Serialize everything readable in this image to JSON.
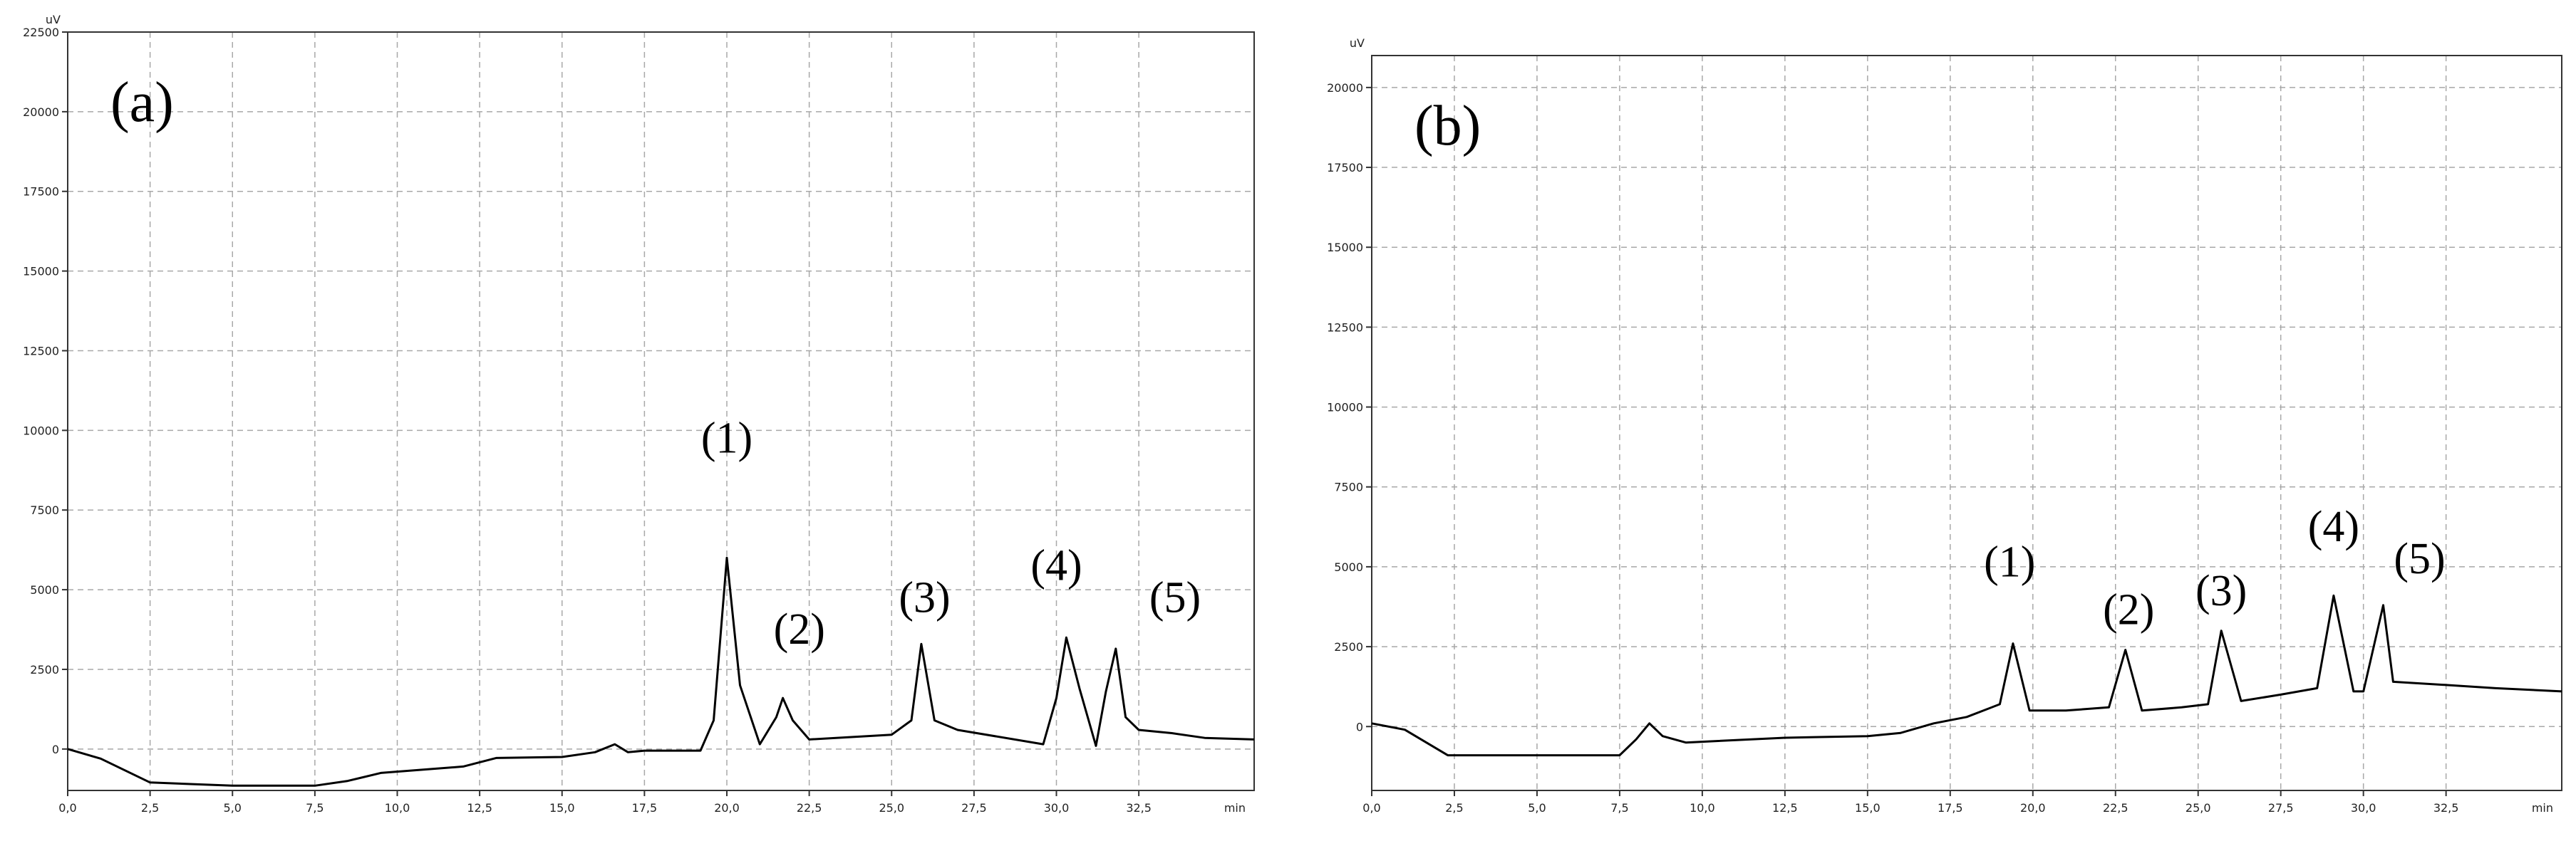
{
  "chart_data": [
    {
      "type": "line",
      "panel_label": "(a)",
      "y_unit": "uV",
      "x_unit": "min",
      "xlim": [
        0,
        36.0
      ],
      "ylim": [
        -1300,
        22500
      ],
      "x_ticks": [
        "0,0",
        "2,5",
        "5,0",
        "7,5",
        "10,0",
        "12,5",
        "15,0",
        "17,5",
        "20,0",
        "22,5",
        "25,0",
        "27,5",
        "30,0",
        "32,5"
      ],
      "x_tick_values": [
        0,
        2.5,
        5,
        7.5,
        10,
        12.5,
        15,
        17.5,
        20,
        22.5,
        25,
        27.5,
        30,
        32.5
      ],
      "y_ticks": [
        "0",
        "2500",
        "5000",
        "7500",
        "10000",
        "12500",
        "15000",
        "17500",
        "20000",
        "22500"
      ],
      "y_tick_values": [
        0,
        2500,
        5000,
        7500,
        10000,
        12500,
        15000,
        17500,
        20000,
        22500
      ],
      "grid": true,
      "series": [
        {
          "color": "#000000",
          "points": [
            [
              0,
              0
            ],
            [
              1,
              -300
            ],
            [
              2.5,
              -1050
            ],
            [
              5,
              -1150
            ],
            [
              7.5,
              -1150
            ],
            [
              8.5,
              -1000
            ],
            [
              9.5,
              -750
            ],
            [
              12,
              -550
            ],
            [
              13,
              -280
            ],
            [
              15,
              -250
            ],
            [
              16,
              -100
            ],
            [
              16.6,
              150
            ],
            [
              17,
              -100
            ],
            [
              17.5,
              -50
            ],
            [
              19.2,
              -50
            ],
            [
              19.6,
              900
            ],
            [
              20.0,
              6000
            ],
            [
              20.4,
              2000
            ],
            [
              21,
              150
            ],
            [
              21.5,
              1000
            ],
            [
              21.7,
              1600
            ],
            [
              22.0,
              900
            ],
            [
              22.5,
              300
            ],
            [
              25,
              450
            ],
            [
              25.6,
              900
            ],
            [
              25.9,
              3300
            ],
            [
              26.3,
              900
            ],
            [
              27,
              600
            ],
            [
              29.6,
              150
            ],
            [
              30.0,
              1600
            ],
            [
              30.3,
              3500
            ],
            [
              30.7,
              1900
            ],
            [
              31.2,
              100
            ],
            [
              31.5,
              1800
            ],
            [
              31.8,
              3150
            ],
            [
              32.1,
              1000
            ],
            [
              32.5,
              600
            ],
            [
              33.5,
              500
            ],
            [
              34.5,
              350
            ],
            [
              36,
              300
            ]
          ]
        }
      ],
      "annotations": [
        {
          "text": "(1)",
          "x": 20.0,
          "y": 9300
        },
        {
          "text": "(2)",
          "x": 22.2,
          "y": 3300
        },
        {
          "text": "(3)",
          "x": 26.0,
          "y": 4300
        },
        {
          "text": "(4)",
          "x": 30.0,
          "y": 5300
        },
        {
          "text": "(5)",
          "x": 33.6,
          "y": 4300
        }
      ]
    },
    {
      "type": "line",
      "panel_label": "(b)",
      "y_unit": "uV",
      "x_unit": "min",
      "xlim": [
        0,
        36.0
      ],
      "ylim": [
        -2000,
        21000
      ],
      "x_ticks": [
        "0,0",
        "2,5",
        "5,0",
        "7,5",
        "10,0",
        "12,5",
        "15,0",
        "17,5",
        "20,0",
        "22,5",
        "25,0",
        "27,5",
        "30,0",
        "32,5"
      ],
      "x_tick_values": [
        0,
        2.5,
        5,
        7.5,
        10,
        12.5,
        15,
        17.5,
        20,
        22.5,
        25,
        27.5,
        30,
        32.5
      ],
      "y_ticks": [
        "0",
        "2500",
        "5000",
        "7500",
        "10000",
        "12500",
        "15000",
        "17500",
        "20000"
      ],
      "y_tick_values": [
        0,
        2500,
        5000,
        7500,
        10000,
        12500,
        15000,
        17500,
        20000
      ],
      "grid": true,
      "series": [
        {
          "color": "#000000",
          "points": [
            [
              0,
              100
            ],
            [
              1,
              -100
            ],
            [
              2.3,
              -900
            ],
            [
              5,
              -900
            ],
            [
              7.5,
              -900
            ],
            [
              8,
              -400
            ],
            [
              8.4,
              100
            ],
            [
              8.8,
              -300
            ],
            [
              9.5,
              -500
            ],
            [
              12.5,
              -350
            ],
            [
              15,
              -300
            ],
            [
              16,
              -200
            ],
            [
              17,
              100
            ],
            [
              18,
              300
            ],
            [
              19,
              700
            ],
            [
              19.4,
              2600
            ],
            [
              19.9,
              500
            ],
            [
              21,
              500
            ],
            [
              22.3,
              600
            ],
            [
              22.8,
              2400
            ],
            [
              23.3,
              500
            ],
            [
              24.5,
              600
            ],
            [
              25.3,
              700
            ],
            [
              25.7,
              3000
            ],
            [
              26.3,
              800
            ],
            [
              27.5,
              1000
            ],
            [
              28.6,
              1200
            ],
            [
              29.1,
              4100
            ],
            [
              29.7,
              1100
            ],
            [
              30.0,
              1100
            ],
            [
              30.6,
              3800
            ],
            [
              30.9,
              1400
            ],
            [
              32.5,
              1300
            ],
            [
              34,
              1200
            ],
            [
              36,
              1100
            ]
          ]
        }
      ],
      "annotations": [
        {
          "text": "(1)",
          "x": 19.3,
          "y": 4700
        },
        {
          "text": "(2)",
          "x": 22.9,
          "y": 3200
        },
        {
          "text": "(3)",
          "x": 25.7,
          "y": 3800
        },
        {
          "text": "(4)",
          "x": 29.1,
          "y": 5800
        },
        {
          "text": "(5)",
          "x": 31.7,
          "y": 4800
        }
      ]
    }
  ]
}
